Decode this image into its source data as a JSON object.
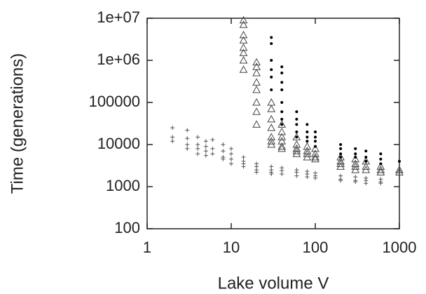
{
  "chart_data": {
    "type": "scatter",
    "xlabel": "Lake volume V",
    "ylabel": "Time (generations)",
    "xscale": "log",
    "yscale": "log",
    "grid": false,
    "xlim": [
      1,
      1000
    ],
    "xticks": [
      1,
      10,
      100,
      1000
    ],
    "ylim": [
      100,
      10000000
    ],
    "yticks": [
      100,
      1000,
      10000,
      100000,
      {
        "value": 1000000,
        "label": "1e+06"
      },
      {
        "value": 10000000,
        "label": "1e+07"
      }
    ],
    "series": [
      {
        "marker": "plus",
        "color": "#555555",
        "x": [
          2,
          2,
          2,
          3,
          3,
          3,
          3,
          4,
          4,
          4,
          4,
          5,
          5,
          5,
          5,
          6,
          6,
          6,
          8,
          8,
          8,
          8,
          10,
          10,
          10,
          10,
          14,
          14,
          14,
          14,
          20,
          20,
          20,
          20,
          30,
          30,
          30,
          30,
          40,
          40,
          40,
          60,
          60,
          60,
          80,
          80,
          80,
          100,
          100,
          100,
          200,
          200,
          200,
          300,
          300,
          300,
          400,
          400,
          400,
          600,
          600,
          600
        ],
        "values": [
          25000,
          15000,
          12000,
          22000,
          14000,
          10000,
          8000,
          15000,
          10000,
          8000,
          6000,
          12000,
          9000,
          7000,
          5500,
          13000,
          8000,
          6000,
          10000,
          7000,
          5000,
          4500,
          8000,
          6000,
          4500,
          3500,
          5000,
          4000,
          3500,
          3000,
          3500,
          3000,
          2500,
          2200,
          3000,
          2500,
          2200,
          2000,
          2800,
          2400,
          2000,
          2500,
          2200,
          1800,
          2300,
          2000,
          1700,
          2100,
          1800,
          1600,
          1800,
          1500,
          1400,
          1700,
          1400,
          1300,
          1600,
          1400,
          1200,
          1500,
          1300,
          1200
        ]
      },
      {
        "marker": "triangle",
        "color": "#444444",
        "x": [
          14,
          14,
          14,
          14,
          14,
          14,
          14,
          14,
          20,
          20,
          20,
          20,
          20,
          20,
          20,
          20,
          30,
          30,
          30,
          30,
          30,
          30,
          30,
          40,
          40,
          40,
          40,
          40,
          40,
          60,
          60,
          60,
          60,
          60,
          80,
          80,
          80,
          80,
          100,
          100,
          100,
          100,
          200,
          200,
          200,
          200,
          300,
          300,
          300,
          300,
          400,
          400,
          400,
          600,
          600,
          600,
          1000,
          1000
        ],
        "values": [
          9000000,
          7000000,
          4000000,
          3000000,
          2000000,
          1500000,
          1000000,
          600000,
          900000,
          700000,
          500000,
          300000,
          200000,
          100000,
          60000,
          30000,
          100000,
          70000,
          40000,
          25000,
          15000,
          12000,
          10000,
          30000,
          20000,
          15000,
          12000,
          9000,
          8000,
          15000,
          10000,
          8000,
          7000,
          6000,
          9000,
          7000,
          6000,
          5000,
          8000,
          6000,
          5000,
          4500,
          5000,
          4000,
          3500,
          3000,
          4500,
          3500,
          3000,
          2500,
          4000,
          3000,
          2500,
          3000,
          2500,
          2200,
          2500,
          2200
        ]
      },
      {
        "marker": "dot",
        "color": "#000000",
        "x": [
          30,
          30,
          30,
          30,
          30,
          30,
          40,
          40,
          40,
          40,
          40,
          40,
          40,
          40,
          60,
          60,
          60,
          60,
          60,
          80,
          80,
          80,
          80,
          100,
          100,
          100,
          100,
          200,
          200,
          200,
          200,
          300,
          300,
          300,
          400,
          400,
          400,
          600,
          600,
          600,
          1000
        ],
        "values": [
          3500000,
          2500000,
          1000000,
          600000,
          400000,
          200000,
          700000,
          500000,
          300000,
          200000,
          100000,
          60000,
          40000,
          30000,
          60000,
          40000,
          30000,
          20000,
          15000,
          30000,
          20000,
          15000,
          12000,
          20000,
          15000,
          12000,
          9000,
          10000,
          8000,
          6000,
          5000,
          8000,
          6000,
          5000,
          7000,
          5000,
          4000,
          6000,
          4500,
          3500,
          4000
        ]
      }
    ]
  }
}
